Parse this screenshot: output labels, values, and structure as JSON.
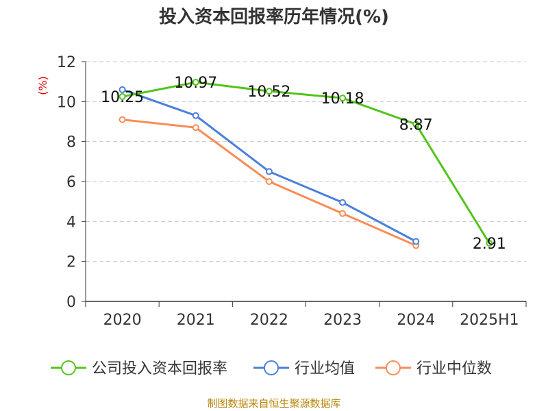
{
  "chart_data": {
    "type": "line",
    "title": "投入资本回报率历年情况(%)",
    "ylabel": "(%)",
    "xlabel": "",
    "categories": [
      "2020",
      "2021",
      "2022",
      "2023",
      "2024",
      "2025H1"
    ],
    "ylim": [
      0,
      12
    ],
    "yticks": [
      0,
      2,
      4,
      6,
      8,
      10,
      12
    ],
    "grid": true,
    "legend_position": "bottom",
    "series": [
      {
        "name": "公司投入资本回报率",
        "color": "#52c41a",
        "values": [
          10.25,
          10.97,
          10.52,
          10.18,
          8.87,
          2.91
        ],
        "labels": [
          "10.25",
          "10.97",
          "10.52",
          "10.18",
          "8.87",
          "2.91"
        ]
      },
      {
        "name": "行业均值",
        "color": "#4a7fdc",
        "values": [
          10.6,
          9.3,
          6.5,
          4.95,
          3.0,
          null
        ]
      },
      {
        "name": "行业中位数",
        "color": "#fa8c55",
        "values": [
          9.1,
          8.7,
          6.0,
          4.4,
          2.8,
          null
        ]
      }
    ]
  },
  "source": "制图数据来自恒生聚源数据库"
}
